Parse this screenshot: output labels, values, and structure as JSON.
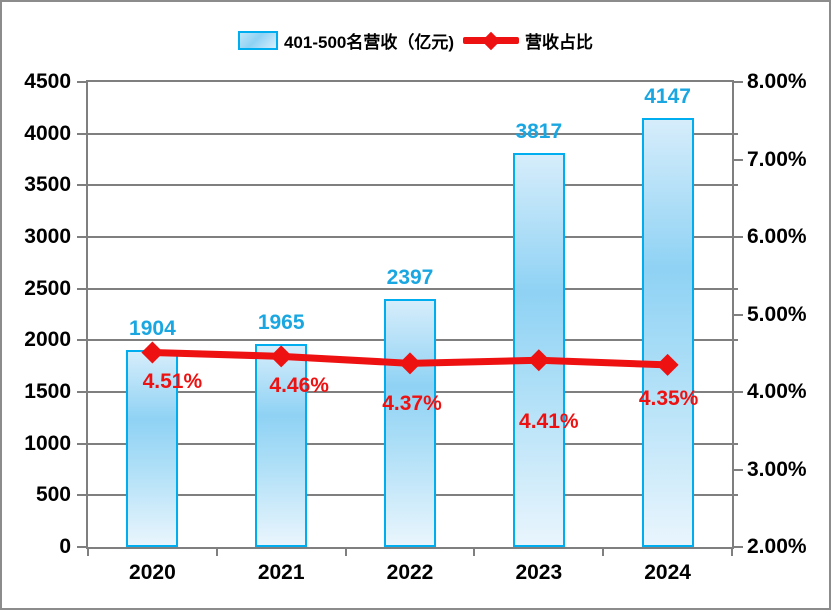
{
  "chart_data": {
    "type": "combo",
    "title": "",
    "categories": [
      "2020",
      "2021",
      "2022",
      "2023",
      "2024"
    ],
    "series": [
      {
        "name": "401-500名营收（亿元)",
        "type": "bar",
        "axis": "left",
        "values": [
          1904,
          1965,
          2397,
          3817,
          4147
        ],
        "data_labels": [
          "1904",
          "1965",
          "2397",
          "3817",
          "4147"
        ]
      },
      {
        "name": "营收占比",
        "type": "line",
        "axis": "right",
        "values": [
          4.51,
          4.46,
          4.37,
          4.41,
          4.35
        ],
        "data_labels": [
          "4.51%",
          "4.46%",
          "4.37%",
          "4.41%",
          "4.35%"
        ]
      }
    ],
    "left_axis": {
      "min": 0,
      "max": 4500,
      "step": 500,
      "tick_labels": [
        "0",
        "500",
        "1000",
        "1500",
        "2000",
        "2500",
        "3000",
        "3500",
        "4000",
        "4500"
      ]
    },
    "right_axis": {
      "min": 2,
      "max": 8,
      "step": 1,
      "tick_labels": [
        "2.00%",
        "3.00%",
        "4.00%",
        "5.00%",
        "6.00%",
        "7.00%",
        "8.00%"
      ]
    },
    "grid": true,
    "legend_position": "top",
    "colors": {
      "bar_border": "#00AEEF",
      "bar_label": "#1aa7e1",
      "line": "#ee1111",
      "line_label": "#ee1111",
      "grid": "#7f7f7f",
      "axis_text": "#000000",
      "background": "#ffffff"
    },
    "label_offsets": {
      "pct_dx": [
        20,
        18,
        2,
        10,
        1
      ],
      "pct_dy": [
        18,
        18,
        29,
        50,
        22
      ]
    }
  }
}
